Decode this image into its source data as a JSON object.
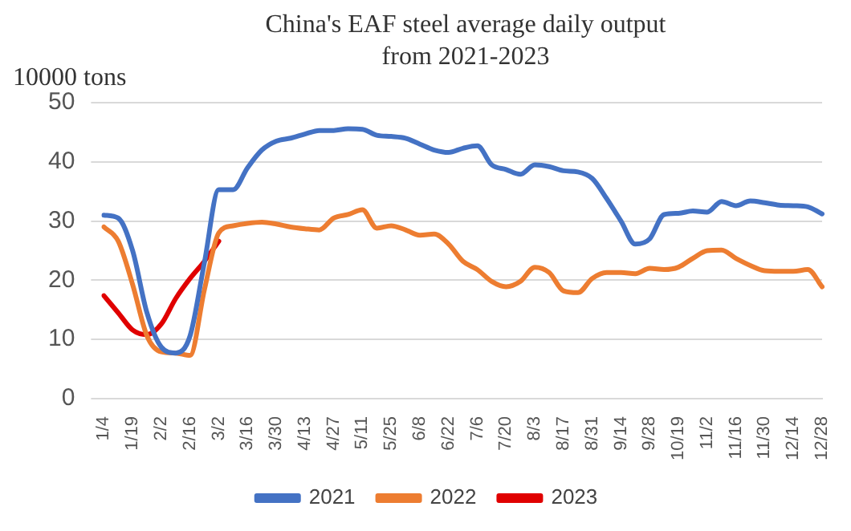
{
  "chart_data": {
    "type": "line",
    "title": "China's EAF steel average daily output from 2021-2023",
    "ylabel": "10000 tons",
    "categories": [
      "1/4",
      null,
      "1/19",
      null,
      "2/2",
      null,
      "2/16",
      null,
      "3/2",
      null,
      "3/16",
      null,
      "3/30",
      null,
      "4/13",
      null,
      "4/27",
      null,
      "5/11",
      null,
      "5/25",
      null,
      "6/8",
      null,
      "6/22",
      null,
      "7/6",
      null,
      "7/20",
      null,
      "8/3",
      null,
      "8/17",
      null,
      "8/31",
      null,
      "9/14",
      null,
      "9/28",
      null,
      "10/19",
      null,
      "11/2",
      null,
      "11/16",
      null,
      "11/30",
      null,
      "12/14",
      null,
      "12/28"
    ],
    "series": [
      {
        "name": "2021",
        "color": "#4472c4",
        "values": [
          31,
          30.5,
          25,
          14.5,
          8.7,
          7.7,
          10.6,
          23,
          35.3,
          35.3,
          39,
          42,
          43.5,
          44,
          44.7,
          45.3,
          45.3,
          45.6,
          45.5,
          44.5,
          44.3,
          44,
          43,
          42,
          41.6,
          42.3,
          42.7,
          39.5,
          38.7,
          37.9,
          39.5,
          39.2,
          38.5,
          38.3,
          37.2,
          33.8,
          30,
          26.1,
          27,
          31.1,
          31.3,
          31.7,
          31.5,
          33.3,
          32.6,
          33.4,
          33.1,
          32.7,
          32.6,
          32.4,
          31.2
        ]
      },
      {
        "name": "2022",
        "color": "#ed7d31",
        "values": [
          29,
          26.6,
          19.3,
          10.6,
          7.9,
          7.7,
          7.3,
          18.4,
          28,
          29.2,
          29.6,
          29.8,
          29.5,
          29,
          28.7,
          28.5,
          30.5,
          31.1,
          31.9,
          28.8,
          29.2,
          28.5,
          27.6,
          27.8,
          26.1,
          23.2,
          21.8,
          19.8,
          18.9,
          19.8,
          22.2,
          21.3,
          18.2,
          17.9,
          20.3,
          21.3,
          21.3,
          21.1,
          22,
          21.8,
          22.2,
          23.7,
          25,
          25.1,
          23.7,
          22.5,
          21.6,
          21.5,
          21.5,
          21.8,
          18.9
        ]
      },
      {
        "name": "2023",
        "color": "#e00000",
        "values": [
          17.4,
          14.5,
          11.6,
          10.8,
          12.6,
          16.9,
          20.3,
          23.2,
          26.6,
          null,
          null,
          null,
          null,
          null,
          null,
          null,
          null,
          null,
          null,
          null,
          null,
          null,
          null,
          null,
          null,
          null,
          null,
          null,
          null,
          null,
          null,
          null,
          null,
          null,
          null,
          null,
          null,
          null,
          null,
          null,
          null,
          null,
          null,
          null,
          null,
          null,
          null,
          null,
          null,
          null,
          null
        ]
      }
    ],
    "ylim": [
      0,
      50
    ],
    "yticks": [
      0,
      10,
      20,
      30,
      40,
      50
    ],
    "grid": "y",
    "legend": "bottom",
    "marker": "none",
    "line_style": "solid"
  }
}
